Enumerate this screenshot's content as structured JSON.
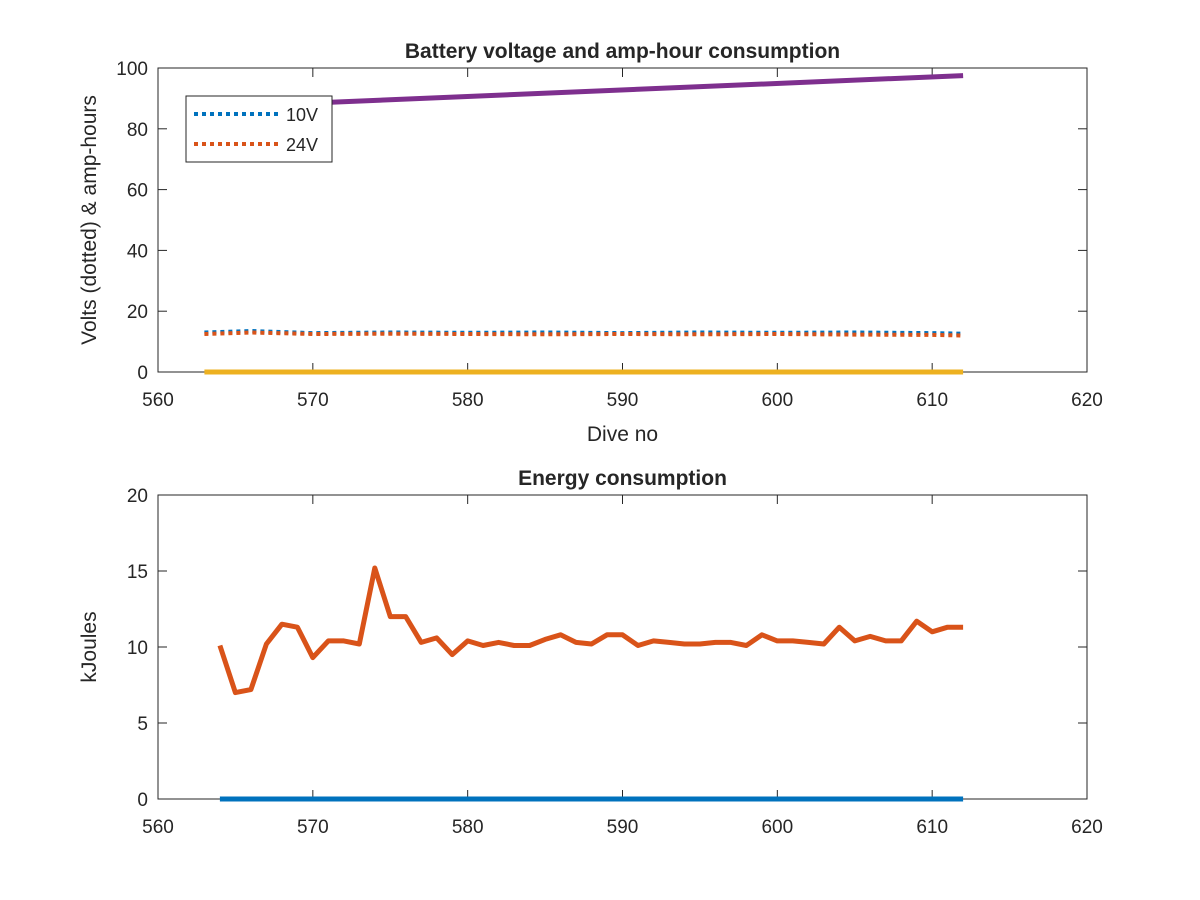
{
  "chart_data": [
    {
      "type": "line",
      "title": "Battery voltage and amp-hour consumption",
      "xlabel": "Dive no",
      "ylabel": "Volts (dotted) & amp-hours",
      "xlim": [
        560,
        620
      ],
      "ylim": [
        0,
        100
      ],
      "xticks": [
        "560",
        "570",
        "580",
        "590",
        "600",
        "610",
        "620"
      ],
      "yticks": [
        "0",
        "20",
        "40",
        "60",
        "80",
        "100"
      ],
      "legend": {
        "placement": "top-left",
        "entries": [
          "10V",
          "24V"
        ]
      },
      "series": [
        {
          "name": "10V",
          "style": "dotted",
          "color": "#0072bd",
          "x": [
            563,
            566,
            570,
            575,
            580,
            585,
            590,
            595,
            600,
            605,
            610,
            612
          ],
          "y": [
            13,
            13.5,
            12.8,
            13,
            12.9,
            13,
            12.8,
            13,
            12.9,
            13,
            12.8,
            12.6
          ]
        },
        {
          "name": "24V",
          "style": "dotted",
          "color": "#d95319",
          "x": [
            563,
            566,
            570,
            575,
            580,
            585,
            590,
            595,
            600,
            605,
            610,
            612
          ],
          "y": [
            12.5,
            13,
            12.5,
            12.6,
            12.5,
            12.4,
            12.5,
            12.4,
            12.5,
            12.3,
            12.2,
            12
          ]
        },
        {
          "style": "solid",
          "color": "#7e2f8e",
          "x": [
            570,
            612
          ],
          "y": [
            88.5,
            97.5
          ]
        },
        {
          "style": "solid",
          "color": "#edb120",
          "x": [
            563,
            612
          ],
          "y": [
            0,
            0
          ]
        }
      ]
    },
    {
      "type": "line",
      "title": "Energy consumption",
      "xlabel": "",
      "ylabel": "kJoules",
      "xlim": [
        560,
        620
      ],
      "ylim": [
        0,
        20
      ],
      "xticks": [
        "560",
        "570",
        "580",
        "590",
        "600",
        "610",
        "620"
      ],
      "yticks": [
        "0",
        "5",
        "10",
        "15",
        "20"
      ],
      "series": [
        {
          "style": "solid",
          "color": "#d95319",
          "x": [
            564,
            565,
            566,
            567,
            568,
            569,
            570,
            571,
            572,
            573,
            574,
            575,
            576,
            577,
            578,
            579,
            580,
            581,
            582,
            583,
            584,
            585,
            586,
            587,
            588,
            589,
            590,
            591,
            592,
            593,
            594,
            595,
            596,
            597,
            598,
            599,
            600,
            601,
            602,
            603,
            604,
            605,
            606,
            607,
            608,
            609,
            610,
            611,
            612
          ],
          "y": [
            10.1,
            7.0,
            7.2,
            10.2,
            11.5,
            11.3,
            9.3,
            10.4,
            10.4,
            10.2,
            15.2,
            12.0,
            12.0,
            10.3,
            10.6,
            9.5,
            10.4,
            10.1,
            10.3,
            10.1,
            10.1,
            10.5,
            10.8,
            10.3,
            10.2,
            10.8,
            10.8,
            10.1,
            10.4,
            10.3,
            10.2,
            10.2,
            10.3,
            10.3,
            10.1,
            10.8,
            10.4,
            10.4,
            10.3,
            10.2,
            11.3,
            10.4,
            10.7,
            10.4,
            10.4,
            11.7,
            11.0,
            11.3,
            11.3
          ]
        },
        {
          "style": "solid",
          "color": "#0072bd",
          "x": [
            564,
            612
          ],
          "y": [
            0,
            0
          ]
        }
      ]
    }
  ]
}
